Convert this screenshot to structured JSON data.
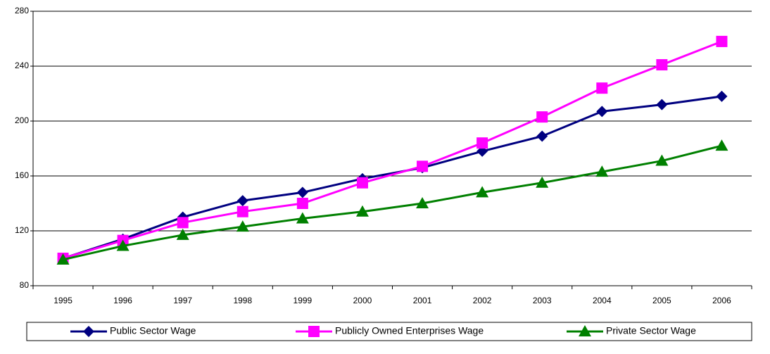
{
  "chart_data": {
    "type": "line",
    "categories": [
      "1995",
      "1996",
      "1997",
      "1998",
      "1999",
      "2000",
      "2001",
      "2002",
      "2003",
      "2004",
      "2005",
      "2006"
    ],
    "series": [
      {
        "name": "Public Sector Wage",
        "color": "#000080",
        "marker": "diamond",
        "values": [
          100,
          114,
          130,
          142,
          148,
          158,
          166,
          178,
          189,
          207,
          212,
          218
        ]
      },
      {
        "name": "Publicly Owned Enterprises Wage",
        "color": "#ff00ff",
        "marker": "square",
        "values": [
          100,
          113,
          126,
          134,
          140,
          155,
          167,
          184,
          203,
          224,
          241,
          258
        ]
      },
      {
        "name": "Private Sector Wage",
        "color": "#008000",
        "marker": "triangle",
        "values": [
          99,
          109,
          117,
          123,
          129,
          134,
          140,
          148,
          155,
          163,
          171,
          182
        ]
      }
    ],
    "ylim": [
      80,
      280
    ],
    "yticks": [
      80,
      120,
      160,
      200,
      240,
      280
    ],
    "grid": true,
    "legend": "bottom"
  }
}
